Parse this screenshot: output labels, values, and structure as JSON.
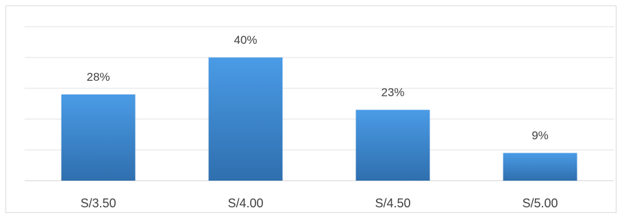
{
  "chart_data": {
    "type": "bar",
    "categories": [
      "S/3.50",
      "S/4.00",
      "S/4.50",
      "S/5.00"
    ],
    "values": [
      28,
      40,
      23,
      9
    ],
    "data_labels": [
      "28%",
      "40%",
      "23%",
      "9%"
    ],
    "title": "",
    "xlabel": "",
    "ylabel": "",
    "ylim": [
      0,
      50
    ],
    "grid": true,
    "legend": "none",
    "colors": {
      "bar_top": "#4a9be6",
      "bar_bottom": "#2f6fae",
      "grid": "#e0e0e0",
      "text": "#404040"
    }
  }
}
